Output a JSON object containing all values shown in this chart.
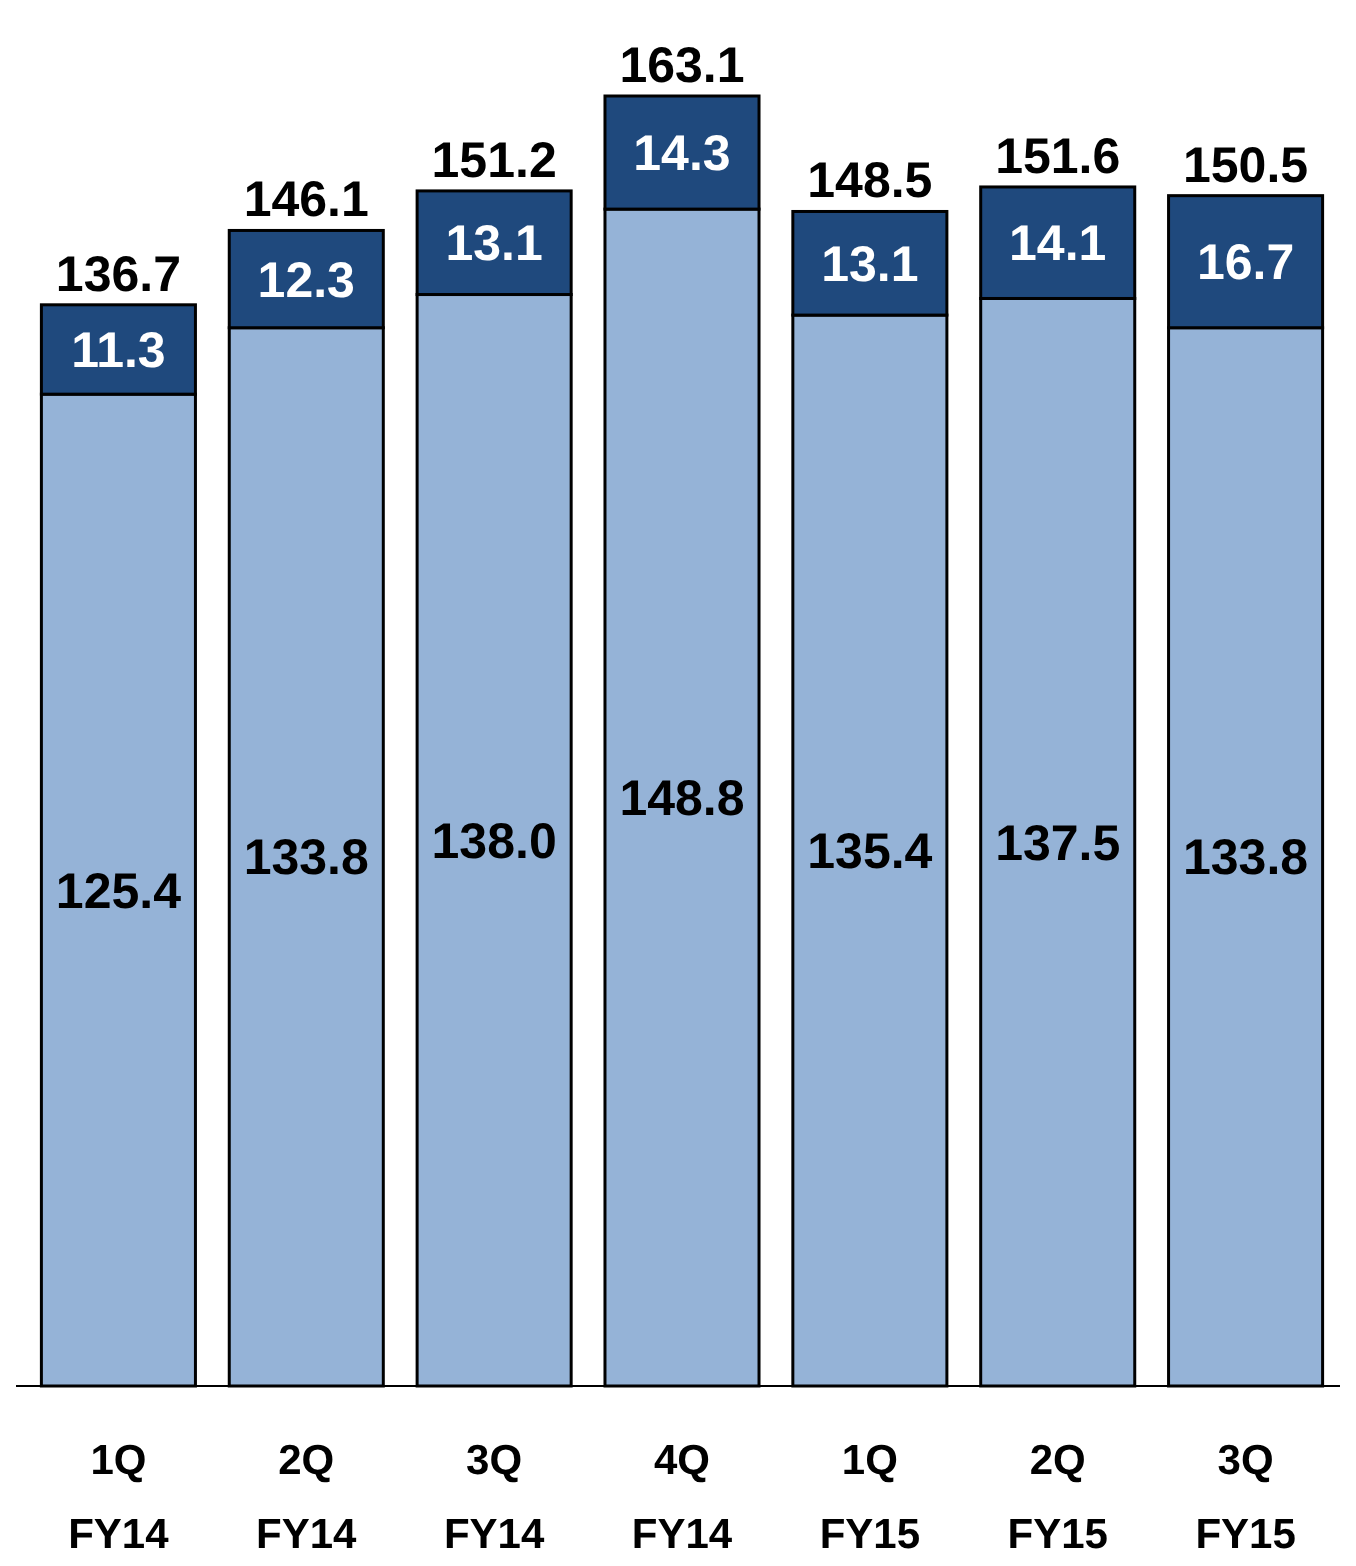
{
  "chart_data": {
    "type": "bar",
    "stacked": true,
    "categories": [
      "1Q\nFY14",
      "2Q\nFY14",
      "3Q\nFY14",
      "4Q\nFY14",
      "1Q\nFY15",
      "2Q\nFY15",
      "3Q\nFY15"
    ],
    "series": [
      {
        "color": "#95b3d7",
        "values": [
          125.4,
          133.8,
          138.0,
          148.8,
          135.4,
          137.5,
          133.8
        ],
        "value_labels": [
          "125.4",
          "133.8",
          "138.0",
          "148.8",
          "135.4",
          "137.5",
          "133.8"
        ]
      },
      {
        "color": "#1f497d",
        "values": [
          11.3,
          12.3,
          13.1,
          14.3,
          13.1,
          14.1,
          16.7
        ],
        "value_labels": [
          "11.3",
          "12.3",
          "13.1",
          "14.3",
          "13.1",
          "14.1",
          "16.7"
        ]
      }
    ],
    "totals": [
      "136.7",
      "146.1",
      "151.2",
      "163.1",
      "148.5",
      "151.6",
      "150.5"
    ]
  }
}
